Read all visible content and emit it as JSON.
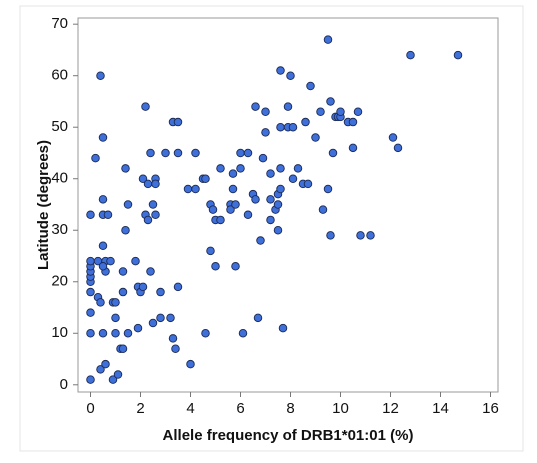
{
  "chart_data": {
    "type": "scatter",
    "xlabel": "Allele frequency of DRB1*01:01 (%)",
    "ylabel": "Latitude (degrees)",
    "color": "#3f6fd9",
    "xlim": [
      -0.5,
      16.3
    ],
    "ylim": [
      -1.4,
      71.2
    ],
    "xticks": [
      0,
      2,
      4,
      6,
      8,
      10,
      12,
      14,
      16
    ],
    "yticks": [
      0,
      10,
      20,
      30,
      40,
      50,
      60,
      70
    ],
    "x": [
      0,
      0,
      0,
      0,
      0,
      0,
      0,
      0,
      0,
      0,
      0.2,
      0.4,
      0.3,
      0.3,
      0.4,
      0.5,
      0.4,
      0.5,
      0.5,
      0.5,
      0.6,
      0.5,
      0.6,
      0.5,
      0.6,
      0.7,
      0.8,
      0.9,
      1,
      1,
      0.9,
      1.1,
      1,
      1.2,
      1.3,
      1.3,
      1.3,
      1.4,
      1.4,
      1.5,
      1.5,
      1.8,
      1.9,
      1.9,
      2,
      2.1,
      2.1,
      2.2,
      2.3,
      2.2,
      2.3,
      2.4,
      2.4,
      2.5,
      2.5,
      2.6,
      2.6,
      2.6,
      2.8,
      2.8,
      3,
      3.2,
      3.3,
      3.3,
      3.4,
      3.5,
      3.5,
      3.5,
      3.9,
      4,
      4.2,
      4.2,
      4.5,
      4.6,
      4.6,
      4.8,
      4.8,
      4.9,
      5,
      5,
      5.2,
      5.2,
      5.6,
      5.6,
      5.7,
      5.7,
      5.8,
      5.8,
      6,
      6,
      6.1,
      6.3,
      6.3,
      6.5,
      6.6,
      6.6,
      6.7,
      6.8,
      6.9,
      7,
      7,
      7.2,
      7.2,
      7.2,
      7.4,
      7.5,
      7.5,
      7.5,
      7.6,
      7.6,
      7.6,
      7.6,
      7.7,
      7.9,
      7.9,
      8,
      8.1,
      8.1,
      8.3,
      8.5,
      8.6,
      8.7,
      8.8,
      9,
      9.2,
      9.3,
      9.5,
      9.5,
      9.6,
      9.6,
      9.7,
      9.8,
      9.9,
      10,
      10,
      10.3,
      10.5,
      10.5,
      10.7,
      10.8,
      11.2,
      12.1,
      12.3,
      12.8,
      14.7
    ],
    "y": [
      1,
      10,
      14,
      18,
      20,
      21,
      22,
      23,
      24,
      33,
      44,
      60,
      24,
      17,
      16,
      10,
      3,
      33,
      36,
      48,
      22,
      27,
      24,
      23,
      4,
      33,
      24,
      16,
      16,
      10,
      1,
      2,
      13,
      7,
      7,
      22,
      18,
      30,
      42,
      35,
      10,
      24,
      19,
      11,
      18,
      40,
      19,
      54,
      39,
      33,
      32,
      45,
      22,
      35,
      12,
      40,
      39,
      33,
      13,
      18,
      45,
      13,
      51,
      9,
      7,
      45,
      51,
      19,
      38,
      4,
      38,
      45,
      40,
      10,
      40,
      26,
      35,
      34,
      23,
      32,
      32,
      42,
      35,
      34,
      41,
      38,
      35,
      23,
      42,
      45,
      10,
      45,
      33,
      37,
      36,
      54,
      13,
      28,
      44,
      49,
      53,
      36,
      32,
      41,
      34,
      35,
      37,
      30,
      38,
      42,
      50,
      61,
      11,
      54,
      50,
      60,
      50,
      40,
      42,
      39,
      51,
      39,
      58,
      48,
      53,
      34,
      67,
      38,
      55,
      29,
      45,
      52,
      52,
      52,
      53,
      51,
      46,
      51,
      53,
      29,
      29,
      48,
      46,
      64,
      64
    ]
  }
}
